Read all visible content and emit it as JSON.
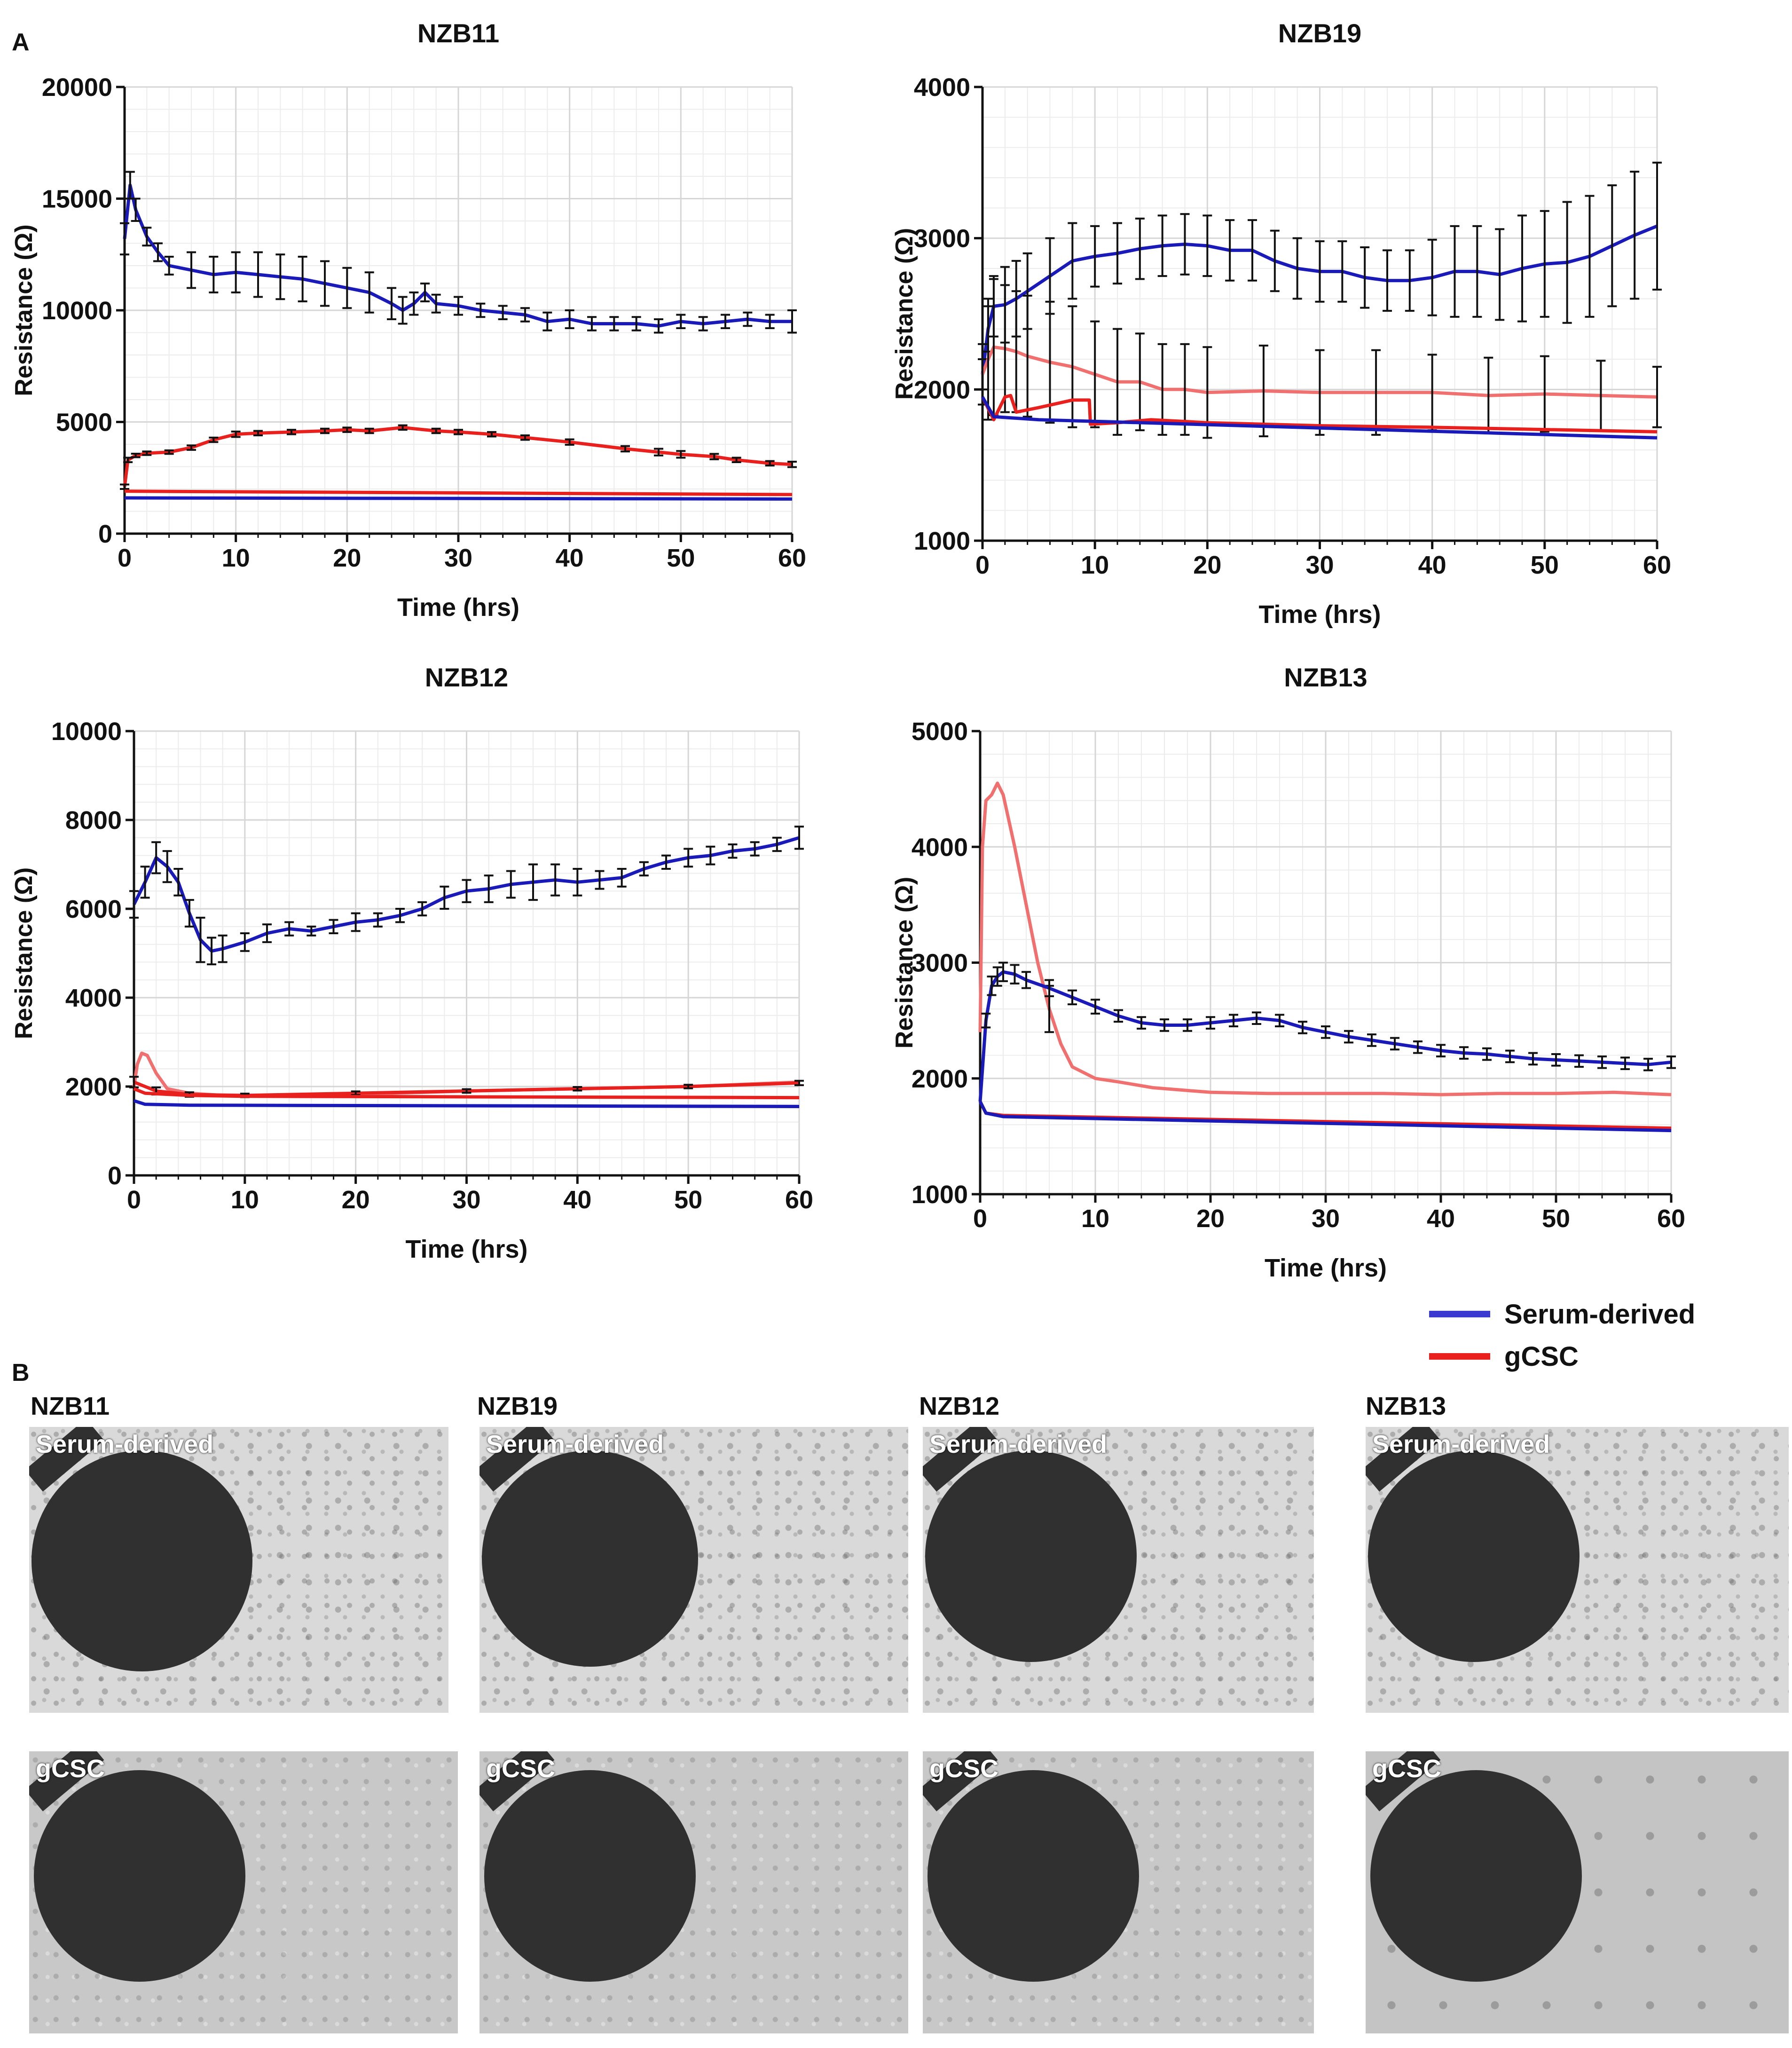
{
  "panel_a_letter": "A",
  "panel_b_letter": "B",
  "colors": {
    "serum": "#1a1ab8",
    "gcsc": "#e8201e",
    "gcsc_light": "#f07070",
    "grid": "#d6d6d6"
  },
  "chart_data": [
    {
      "type": "line",
      "title": "NZB11",
      "xlabel": "Time (hrs)",
      "ylabel": "Resistance (Ω)",
      "xlim": [
        0,
        60
      ],
      "ylim": [
        0,
        20000
      ],
      "xticks": [
        0,
        10,
        20,
        30,
        40,
        50,
        60
      ],
      "yticks": [
        0,
        5000,
        10000,
        15000,
        20000
      ],
      "ytick_labels": [
        "0",
        "5000",
        "10000",
        "15000",
        "20000"
      ],
      "series": [
        {
          "name": "Serum-derived",
          "color_key": "serum",
          "x": [
            0,
            0.5,
            1,
            2,
            3,
            4,
            6,
            8,
            10,
            12,
            14,
            16,
            18,
            20,
            22,
            24,
            25,
            26,
            27,
            28,
            30,
            32,
            34,
            36,
            38,
            40,
            42,
            44,
            46,
            48,
            50,
            52,
            54,
            56,
            58,
            60
          ],
          "y": [
            13200,
            15600,
            14500,
            13300,
            12600,
            12000,
            11800,
            11600,
            11700,
            11600,
            11500,
            11400,
            11200,
            11000,
            10800,
            10300,
            10000,
            10300,
            10800,
            10300,
            10200,
            10000,
            9900,
            9800,
            9500,
            9600,
            9400,
            9400,
            9400,
            9300,
            9500,
            9400,
            9500,
            9600,
            9500,
            9500
          ],
          "err": [
            700,
            600,
            500,
            400,
            400,
            400,
            800,
            800,
            900,
            1000,
            1000,
            1000,
            1000,
            900,
            900,
            700,
            600,
            500,
            400,
            400,
            400,
            300,
            300,
            300,
            400,
            400,
            300,
            300,
            300,
            300,
            300,
            300,
            300,
            300,
            300,
            500
          ]
        },
        {
          "name": "gCSC",
          "color_key": "gcsc",
          "x": [
            0,
            0.3,
            1,
            2,
            4,
            6,
            8,
            10,
            12,
            15,
            18,
            20,
            22,
            25,
            28,
            30,
            33,
            36,
            40,
            45,
            48,
            50,
            53,
            55,
            58,
            60
          ],
          "y": [
            2100,
            3300,
            3500,
            3600,
            3650,
            3850,
            4200,
            4450,
            4500,
            4550,
            4600,
            4650,
            4600,
            4750,
            4600,
            4550,
            4450,
            4300,
            4100,
            3800,
            3650,
            3550,
            3450,
            3300,
            3150,
            3100
          ],
          "err": [
            100,
            100,
            80,
            80,
            80,
            100,
            100,
            120,
            100,
            100,
            100,
            100,
            100,
            100,
            100,
            100,
            100,
            100,
            120,
            120,
            150,
            150,
            120,
            100,
            100,
            120
          ]
        },
        {
          "name": "gCSC",
          "color_key": "gcsc",
          "x": [
            0,
            60
          ],
          "y": [
            1900,
            1750
          ]
        },
        {
          "name": "Serum-derived",
          "color_key": "serum",
          "x": [
            0,
            60
          ],
          "y": [
            1600,
            1550
          ]
        }
      ]
    },
    {
      "type": "line",
      "title": "NZB19",
      "xlabel": "Time (hrs)",
      "ylabel": "Resistance (Ω)",
      "xlim": [
        0,
        60
      ],
      "ylim": [
        1000,
        4000
      ],
      "xticks": [
        0,
        10,
        20,
        30,
        40,
        50,
        60
      ],
      "yticks": [
        1000,
        2000,
        3000,
        4000
      ],
      "ytick_labels": [
        "1000",
        "2000",
        "3000",
        "4000"
      ],
      "series": [
        {
          "name": "Serum-derived",
          "color_key": "serum",
          "x": [
            0,
            0.5,
            1,
            2,
            3,
            4,
            6,
            8,
            10,
            12,
            14,
            16,
            18,
            20,
            22,
            24,
            26,
            28,
            30,
            32,
            34,
            36,
            38,
            40,
            42,
            44,
            46,
            48,
            50,
            52,
            54,
            56,
            58,
            60
          ],
          "y": [
            2100,
            2400,
            2550,
            2560,
            2600,
            2650,
            2750,
            2850,
            2880,
            2900,
            2930,
            2950,
            2960,
            2950,
            2920,
            2920,
            2850,
            2800,
            2780,
            2780,
            2740,
            2720,
            2720,
            2740,
            2780,
            2780,
            2760,
            2800,
            2830,
            2840,
            2880,
            2950,
            3020,
            3080
          ],
          "err": [
            100,
            150,
            200,
            250,
            250,
            250,
            250,
            250,
            200,
            200,
            200,
            200,
            200,
            200,
            200,
            200,
            200,
            200,
            200,
            200,
            200,
            200,
            200,
            250,
            300,
            300,
            300,
            350,
            350,
            400,
            400,
            400,
            420,
            420
          ]
        },
        {
          "name": "gCSC",
          "color_key": "gcsc_light",
          "x": [
            0,
            0.5,
            1,
            2,
            3,
            4,
            6,
            8,
            10,
            12,
            14,
            16,
            18,
            20,
            25,
            30,
            35,
            40,
            45,
            50,
            55,
            60
          ],
          "y": [
            2100,
            2200,
            2280,
            2270,
            2250,
            2220,
            2180,
            2150,
            2100,
            2050,
            2050,
            2000,
            2000,
            1980,
            1990,
            1980,
            1980,
            1980,
            1960,
            1970,
            1960,
            1950
          ],
          "err": [
            200,
            400,
            450,
            420,
            400,
            400,
            400,
            400,
            350,
            350,
            320,
            300,
            300,
            300,
            300,
            280,
            280,
            250,
            250,
            250,
            230,
            200
          ]
        },
        {
          "name": "gCSC",
          "color_key": "gcsc",
          "x": [
            0,
            1,
            2,
            2.5,
            3,
            5,
            8,
            9.5,
            9.6,
            12,
            15,
            20,
            30,
            40,
            60
          ],
          "y": [
            1950,
            1800,
            1950,
            1960,
            1850,
            1880,
            1930,
            1930,
            1770,
            1780,
            1800,
            1780,
            1760,
            1750,
            1720
          ]
        },
        {
          "name": "Serum-derived",
          "color_key": "serum",
          "x": [
            0,
            1,
            5,
            60
          ],
          "y": [
            1950,
            1820,
            1800,
            1680
          ]
        }
      ]
    },
    {
      "type": "line",
      "title": "NZB12",
      "xlabel": "Time (hrs)",
      "ylabel": "Resistance (Ω)",
      "xlim": [
        0,
        60
      ],
      "ylim": [
        0,
        10000
      ],
      "xticks": [
        0,
        10,
        20,
        30,
        40,
        50,
        60
      ],
      "yticks": [
        0,
        2000,
        4000,
        6000,
        8000,
        10000
      ],
      "ytick_labels": [
        "0",
        "2000",
        "4000",
        "6000",
        "8000",
        "10000"
      ],
      "series": [
        {
          "name": "Serum-derived",
          "color_key": "serum",
          "x": [
            0,
            1,
            2,
            3,
            4,
            5,
            6,
            7,
            8,
            10,
            12,
            14,
            16,
            18,
            20,
            22,
            24,
            26,
            28,
            30,
            32,
            34,
            36,
            38,
            40,
            42,
            44,
            46,
            48,
            50,
            52,
            54,
            56,
            58,
            60
          ],
          "y": [
            6100,
            6600,
            7150,
            6950,
            6600,
            5900,
            5300,
            5050,
            5100,
            5250,
            5450,
            5550,
            5500,
            5600,
            5700,
            5750,
            5850,
            6000,
            6250,
            6400,
            6450,
            6550,
            6600,
            6650,
            6600,
            6650,
            6700,
            6900,
            7050,
            7150,
            7200,
            7300,
            7350,
            7450,
            7600
          ],
          "err": [
            300,
            350,
            350,
            350,
            300,
            300,
            500,
            300,
            300,
            200,
            200,
            150,
            100,
            150,
            200,
            150,
            150,
            150,
            250,
            250,
            300,
            300,
            400,
            350,
            300,
            200,
            200,
            150,
            150,
            200,
            200,
            150,
            150,
            150,
            250
          ]
        },
        {
          "name": "gCSC",
          "color_key": "gcsc_light",
          "x": [
            0,
            0.3,
            0.7,
            1.2,
            2,
            3,
            5,
            8,
            12,
            20,
            30,
            40,
            50,
            60
          ],
          "y": [
            2000,
            2500,
            2750,
            2700,
            2300,
            1950,
            1850,
            1800,
            1800,
            1820,
            1900,
            1950,
            2000,
            2100
          ]
        },
        {
          "name": "gCSC",
          "color_key": "gcsc",
          "x": [
            0,
            2,
            5,
            10,
            20,
            30,
            40,
            50,
            60
          ],
          "y": [
            2100,
            1900,
            1820,
            1800,
            1850,
            1900,
            1950,
            2000,
            2080
          ],
          "err": [
            120,
            80,
            50,
            40,
            40,
            40,
            40,
            40,
            50
          ]
        },
        {
          "name": "gCSC",
          "color_key": "gcsc",
          "x": [
            0,
            1,
            5,
            10,
            60
          ],
          "y": [
            1950,
            1850,
            1800,
            1780,
            1750
          ]
        },
        {
          "name": "Serum-derived",
          "color_key": "serum",
          "x": [
            0,
            1,
            5,
            60
          ],
          "y": [
            1680,
            1600,
            1580,
            1550
          ]
        }
      ]
    },
    {
      "type": "line",
      "title": "NZB13",
      "xlabel": "Time (hrs)",
      "ylabel": "Resistance (Ω)",
      "xlim": [
        0,
        60
      ],
      "ylim": [
        1000,
        5000
      ],
      "xticks": [
        0,
        10,
        20,
        30,
        40,
        50,
        60
      ],
      "yticks": [
        1000,
        2000,
        3000,
        4000,
        5000
      ],
      "ytick_labels": [
        "1000",
        "2000",
        "3000",
        "4000",
        "5000"
      ],
      "series": [
        {
          "name": "gCSC",
          "color_key": "gcsc_light",
          "x": [
            0,
            0.2,
            0.5,
            1,
            1.5,
            2,
            3,
            4,
            5,
            6,
            7,
            8,
            10,
            12,
            15,
            20,
            25,
            30,
            35,
            40,
            45,
            50,
            55,
            60
          ],
          "y": [
            2400,
            4000,
            4400,
            4450,
            4550,
            4450,
            4000,
            3500,
            3000,
            2600,
            2300,
            2100,
            2000,
            1970,
            1920,
            1880,
            1870,
            1870,
            1870,
            1860,
            1870,
            1870,
            1880,
            1860
          ],
          "err": [
            0,
            0,
            0,
            0,
            0,
            0,
            0,
            0,
            0,
            200,
            0,
            0,
            0,
            0,
            0,
            0,
            0,
            0,
            0,
            0,
            0,
            0,
            0,
            0
          ]
        },
        {
          "name": "Serum-derived",
          "color_key": "serum",
          "x": [
            0,
            0.5,
            1,
            1.5,
            2,
            3,
            4,
            6,
            8,
            10,
            12,
            14,
            16,
            18,
            20,
            22,
            24,
            26,
            28,
            30,
            32,
            34,
            36,
            38,
            40,
            42,
            44,
            46,
            48,
            50,
            52,
            54,
            56,
            58,
            60
          ],
          "y": [
            1800,
            2500,
            2800,
            2880,
            2920,
            2900,
            2850,
            2780,
            2700,
            2620,
            2540,
            2480,
            2460,
            2460,
            2480,
            2500,
            2520,
            2500,
            2440,
            2400,
            2360,
            2330,
            2300,
            2270,
            2240,
            2220,
            2210,
            2190,
            2170,
            2160,
            2150,
            2140,
            2130,
            2120,
            2140
          ],
          "err": [
            0,
            60,
            80,
            80,
            80,
            80,
            70,
            70,
            60,
            60,
            50,
            50,
            50,
            50,
            50,
            50,
            50,
            50,
            50,
            50,
            50,
            50,
            50,
            50,
            50,
            50,
            50,
            50,
            50,
            50,
            50,
            50,
            50,
            50,
            50
          ]
        },
        {
          "name": "gCSC",
          "color_key": "gcsc",
          "x": [
            0,
            0.5,
            2,
            60
          ],
          "y": [
            1800,
            1700,
            1680,
            1570
          ]
        },
        {
          "name": "Serum-derived",
          "color_key": "serum",
          "x": [
            0,
            0.5,
            2,
            60
          ],
          "y": [
            1800,
            1700,
            1670,
            1550
          ]
        }
      ]
    }
  ],
  "legend": [
    {
      "label": "Serum-derived",
      "color_key": "serum"
    },
    {
      "label": "gCSC",
      "color_key": "gcsc"
    }
  ],
  "panel_b": {
    "columns": [
      "NZB11",
      "NZB19",
      "NZB12",
      "NZB13"
    ],
    "row_labels": [
      "Serum-derived",
      "gCSC"
    ]
  }
}
